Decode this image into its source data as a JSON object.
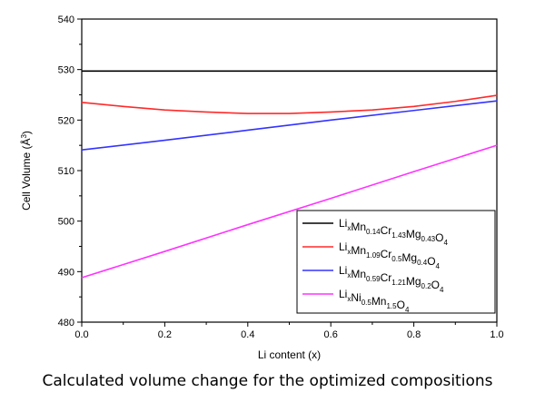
{
  "caption": "Calculated volume change for the optimized compositions",
  "chart_data": {
    "type": "line",
    "xlabel": "Li content (x)",
    "ylabel": {
      "base": "Cell Volume (Å",
      "sup": "3",
      "end": ")"
    },
    "xlim": [
      0.0,
      1.0
    ],
    "ylim": [
      480,
      540
    ],
    "xticks": [
      0.0,
      0.2,
      0.4,
      0.6,
      0.8,
      1.0
    ],
    "xtick_labels": [
      "0.0",
      "0.2",
      "0.4",
      "0.6",
      "0.8",
      "1.0"
    ],
    "yticks": [
      480,
      490,
      500,
      510,
      520,
      530,
      540
    ],
    "ytick_labels": [
      "480",
      "490",
      "500",
      "510",
      "520",
      "530",
      "540"
    ],
    "grid": false,
    "legend_position": "bottom-right",
    "series": [
      {
        "color": "#000000",
        "legend": [
          {
            "t": "Li"
          },
          {
            "t": "x",
            "s": 1
          },
          {
            "t": "Mn"
          },
          {
            "t": "0.14",
            "s": 1
          },
          {
            "t": "Cr"
          },
          {
            "t": "1.43",
            "s": 1
          },
          {
            "t": "Mg"
          },
          {
            "t": "0.43",
            "s": 1
          },
          {
            "t": "O"
          },
          {
            "t": "4",
            "s": 1
          }
        ],
        "x": [
          0.0,
          0.2,
          0.4,
          0.6,
          0.8,
          1.0
        ],
        "y": [
          529.7,
          529.7,
          529.7,
          529.7,
          529.7,
          529.7
        ]
      },
      {
        "color": "#ff2a2a",
        "legend": [
          {
            "t": "Li"
          },
          {
            "t": "x",
            "s": 1
          },
          {
            "t": "Mn"
          },
          {
            "t": "1.09",
            "s": 1
          },
          {
            "t": "Cr"
          },
          {
            "t": "0.5",
            "s": 1
          },
          {
            "t": "Mg"
          },
          {
            "t": "0.4",
            "s": 1
          },
          {
            "t": "O"
          },
          {
            "t": "4",
            "s": 1
          }
        ],
        "x": [
          0.0,
          0.1,
          0.2,
          0.3,
          0.4,
          0.5,
          0.6,
          0.7,
          0.8,
          0.9,
          1.0
        ],
        "y": [
          523.5,
          522.7,
          522.0,
          521.6,
          521.3,
          521.3,
          521.6,
          522.0,
          522.7,
          523.7,
          524.9
        ]
      },
      {
        "color": "#3333ff",
        "legend": [
          {
            "t": "Li"
          },
          {
            "t": "x",
            "s": 1
          },
          {
            "t": "Mn"
          },
          {
            "t": "0.59",
            "s": 1
          },
          {
            "t": "Cr"
          },
          {
            "t": "1.21",
            "s": 1
          },
          {
            "t": "Mg"
          },
          {
            "t": "0.2",
            "s": 1
          },
          {
            "t": "O"
          },
          {
            "t": "4",
            "s": 1
          }
        ],
        "x": [
          0.0,
          0.2,
          0.4,
          0.6,
          0.8,
          1.0
        ],
        "y": [
          514.1,
          516.0,
          518.0,
          520.0,
          521.9,
          523.8
        ]
      },
      {
        "color": "#ff33ff",
        "legend": [
          {
            "t": "Li"
          },
          {
            "t": "x",
            "s": 1
          },
          {
            "t": "Ni"
          },
          {
            "t": "0.5",
            "s": 1
          },
          {
            "t": "Mn"
          },
          {
            "t": "1.5",
            "s": 1
          },
          {
            "t": "O"
          },
          {
            "t": "4",
            "s": 1
          }
        ],
        "x": [
          0.0,
          0.2,
          0.4,
          0.6,
          0.8,
          1.0
        ],
        "y": [
          488.8,
          494.0,
          499.3,
          504.5,
          509.8,
          515.0
        ]
      }
    ]
  }
}
